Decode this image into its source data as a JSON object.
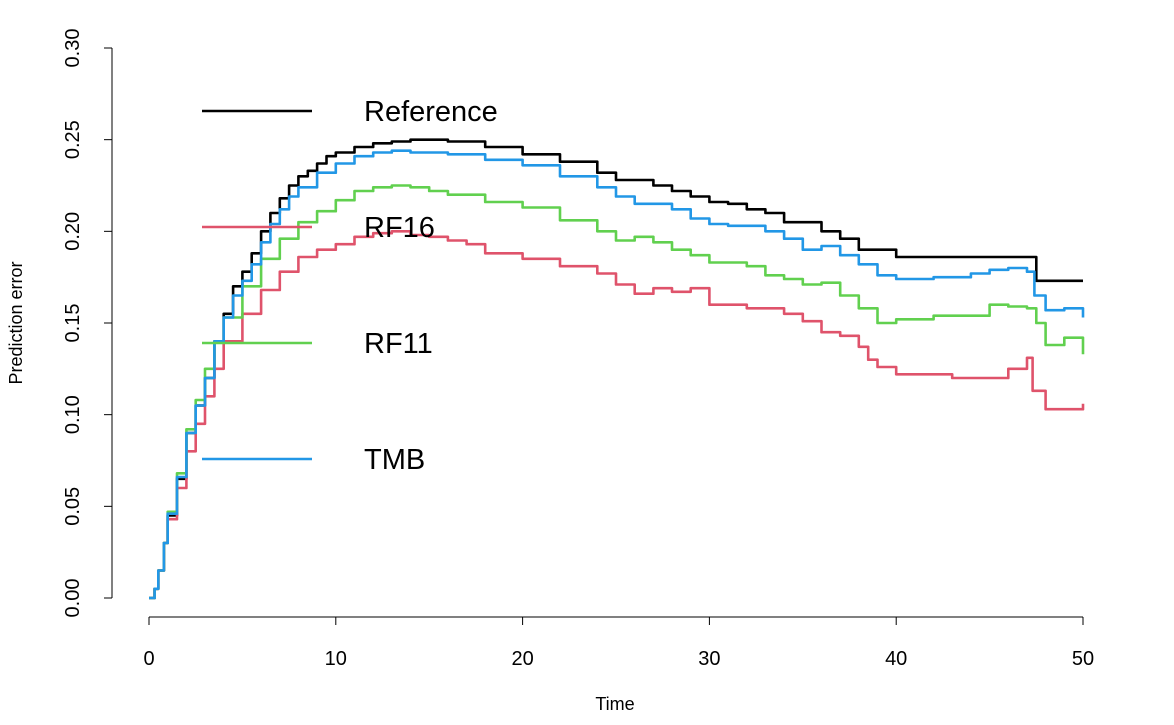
{
  "chart_data": {
    "type": "line",
    "title": "",
    "xlabel": "Time",
    "ylabel": "Prediction error",
    "xlim": [
      0,
      50
    ],
    "ylim": [
      0,
      0.3
    ],
    "x_ticks": [
      0,
      10,
      20,
      30,
      40,
      50
    ],
    "y_ticks": [
      "0.00",
      "0.05",
      "0.10",
      "0.15",
      "0.20",
      "0.25",
      "0.30"
    ],
    "grid": false,
    "legend_position": "top-left",
    "series": [
      {
        "name": "Reference",
        "color": "#000000",
        "points": [
          [
            0,
            0
          ],
          [
            0.3,
            0.005
          ],
          [
            0.5,
            0.015
          ],
          [
            0.8,
            0.03
          ],
          [
            1,
            0.045
          ],
          [
            1.5,
            0.065
          ],
          [
            2,
            0.09
          ],
          [
            2.5,
            0.105
          ],
          [
            3,
            0.12
          ],
          [
            3.5,
            0.14
          ],
          [
            4,
            0.155
          ],
          [
            4.5,
            0.17
          ],
          [
            5,
            0.178
          ],
          [
            5.5,
            0.188
          ],
          [
            6,
            0.2
          ],
          [
            6.5,
            0.21
          ],
          [
            7,
            0.218
          ],
          [
            7.5,
            0.225
          ],
          [
            8,
            0.23
          ],
          [
            8.5,
            0.233
          ],
          [
            9,
            0.237
          ],
          [
            9.5,
            0.241
          ],
          [
            10,
            0.243
          ],
          [
            11,
            0.246
          ],
          [
            12,
            0.248
          ],
          [
            13,
            0.249
          ],
          [
            14,
            0.25
          ],
          [
            16,
            0.249
          ],
          [
            18,
            0.246
          ],
          [
            20,
            0.242
          ],
          [
            22,
            0.238
          ],
          [
            24,
            0.232
          ],
          [
            25,
            0.228
          ],
          [
            26,
            0.228
          ],
          [
            27,
            0.225
          ],
          [
            28,
            0.222
          ],
          [
            29,
            0.219
          ],
          [
            30,
            0.216
          ],
          [
            31,
            0.215
          ],
          [
            32,
            0.212
          ],
          [
            33,
            0.21
          ],
          [
            34,
            0.205
          ],
          [
            35,
            0.205
          ],
          [
            36,
            0.2
          ],
          [
            37,
            0.196
          ],
          [
            38,
            0.19
          ],
          [
            39,
            0.19
          ],
          [
            40,
            0.186
          ],
          [
            43,
            0.186
          ],
          [
            47.4,
            0.186
          ],
          [
            47.5,
            0.173
          ],
          [
            50,
            0.173
          ]
        ]
      },
      {
        "name": "RF16",
        "color": "#df536b",
        "points": [
          [
            0,
            0
          ],
          [
            0.3,
            0.005
          ],
          [
            0.5,
            0.015
          ],
          [
            0.8,
            0.03
          ],
          [
            1,
            0.043
          ],
          [
            1.5,
            0.06
          ],
          [
            2,
            0.08
          ],
          [
            2.5,
            0.095
          ],
          [
            3,
            0.11
          ],
          [
            3.5,
            0.125
          ],
          [
            4,
            0.14
          ],
          [
            5,
            0.155
          ],
          [
            6,
            0.168
          ],
          [
            7,
            0.178
          ],
          [
            8,
            0.186
          ],
          [
            9,
            0.19
          ],
          [
            10,
            0.193
          ],
          [
            11,
            0.197
          ],
          [
            12,
            0.199
          ],
          [
            13,
            0.2
          ],
          [
            14,
            0.198
          ],
          [
            15,
            0.197
          ],
          [
            16,
            0.195
          ],
          [
            17,
            0.193
          ],
          [
            18,
            0.188
          ],
          [
            20,
            0.185
          ],
          [
            22,
            0.181
          ],
          [
            24,
            0.177
          ],
          [
            25,
            0.171
          ],
          [
            26,
            0.166
          ],
          [
            27,
            0.169
          ],
          [
            28,
            0.167
          ],
          [
            29,
            0.169
          ],
          [
            30,
            0.16
          ],
          [
            32,
            0.158
          ],
          [
            34,
            0.155
          ],
          [
            35,
            0.151
          ],
          [
            36,
            0.145
          ],
          [
            37,
            0.143
          ],
          [
            38,
            0.137
          ],
          [
            38.5,
            0.13
          ],
          [
            39,
            0.126
          ],
          [
            40,
            0.122
          ],
          [
            42,
            0.122
          ],
          [
            43,
            0.12
          ],
          [
            45,
            0.12
          ],
          [
            46,
            0.125
          ],
          [
            47,
            0.131
          ],
          [
            47.3,
            0.113
          ],
          [
            48,
            0.103
          ],
          [
            49,
            0.103
          ],
          [
            50,
            0.106
          ]
        ]
      },
      {
        "name": "RF11",
        "color": "#61d04f",
        "points": [
          [
            0,
            0
          ],
          [
            0.3,
            0.005
          ],
          [
            0.5,
            0.015
          ],
          [
            0.8,
            0.03
          ],
          [
            1,
            0.047
          ],
          [
            1.5,
            0.068
          ],
          [
            2,
            0.092
          ],
          [
            2.5,
            0.108
          ],
          [
            3,
            0.125
          ],
          [
            3.5,
            0.14
          ],
          [
            4,
            0.153
          ],
          [
            5,
            0.17
          ],
          [
            6,
            0.185
          ],
          [
            7,
            0.196
          ],
          [
            8,
            0.205
          ],
          [
            9,
            0.211
          ],
          [
            10,
            0.217
          ],
          [
            11,
            0.222
          ],
          [
            12,
            0.224
          ],
          [
            13,
            0.225
          ],
          [
            14,
            0.224
          ],
          [
            15,
            0.222
          ],
          [
            16,
            0.22
          ],
          [
            18,
            0.216
          ],
          [
            20,
            0.213
          ],
          [
            22,
            0.206
          ],
          [
            24,
            0.2
          ],
          [
            25,
            0.195
          ],
          [
            26,
            0.197
          ],
          [
            27,
            0.194
          ],
          [
            28,
            0.19
          ],
          [
            29,
            0.187
          ],
          [
            30,
            0.183
          ],
          [
            31,
            0.183
          ],
          [
            32,
            0.181
          ],
          [
            33,
            0.176
          ],
          [
            34,
            0.174
          ],
          [
            35,
            0.171
          ],
          [
            36,
            0.172
          ],
          [
            37,
            0.165
          ],
          [
            38,
            0.158
          ],
          [
            39,
            0.15
          ],
          [
            40,
            0.152
          ],
          [
            42,
            0.154
          ],
          [
            44,
            0.154
          ],
          [
            45,
            0.16
          ],
          [
            46,
            0.159
          ],
          [
            47,
            0.158
          ],
          [
            47.5,
            0.15
          ],
          [
            48,
            0.138
          ],
          [
            49,
            0.142
          ],
          [
            50,
            0.133
          ]
        ]
      },
      {
        "name": "TMB",
        "color": "#2297e6",
        "points": [
          [
            0,
            0
          ],
          [
            0.3,
            0.005
          ],
          [
            0.5,
            0.015
          ],
          [
            0.8,
            0.03
          ],
          [
            1,
            0.046
          ],
          [
            1.5,
            0.066
          ],
          [
            2,
            0.09
          ],
          [
            2.5,
            0.105
          ],
          [
            3,
            0.12
          ],
          [
            3.5,
            0.14
          ],
          [
            4,
            0.153
          ],
          [
            4.5,
            0.165
          ],
          [
            5,
            0.173
          ],
          [
            5.5,
            0.182
          ],
          [
            6,
            0.194
          ],
          [
            6.5,
            0.204
          ],
          [
            7,
            0.212
          ],
          [
            7.5,
            0.219
          ],
          [
            8,
            0.224
          ],
          [
            9,
            0.232
          ],
          [
            10,
            0.237
          ],
          [
            11,
            0.241
          ],
          [
            12,
            0.243
          ],
          [
            13,
            0.244
          ],
          [
            14,
            0.243
          ],
          [
            16,
            0.242
          ],
          [
            18,
            0.239
          ],
          [
            20,
            0.236
          ],
          [
            22,
            0.23
          ],
          [
            24,
            0.224
          ],
          [
            25,
            0.219
          ],
          [
            26,
            0.215
          ],
          [
            27,
            0.215
          ],
          [
            28,
            0.212
          ],
          [
            29,
            0.207
          ],
          [
            30,
            0.204
          ],
          [
            31,
            0.203
          ],
          [
            32,
            0.203
          ],
          [
            33,
            0.2
          ],
          [
            34,
            0.196
          ],
          [
            35,
            0.19
          ],
          [
            36,
            0.192
          ],
          [
            37,
            0.187
          ],
          [
            38,
            0.182
          ],
          [
            39,
            0.176
          ],
          [
            40,
            0.174
          ],
          [
            42,
            0.175
          ],
          [
            44,
            0.177
          ],
          [
            45,
            0.179
          ],
          [
            46,
            0.18
          ],
          [
            47,
            0.178
          ],
          [
            47.4,
            0.165
          ],
          [
            48,
            0.157
          ],
          [
            49,
            0.158
          ],
          [
            50,
            0.153
          ]
        ]
      }
    ]
  }
}
